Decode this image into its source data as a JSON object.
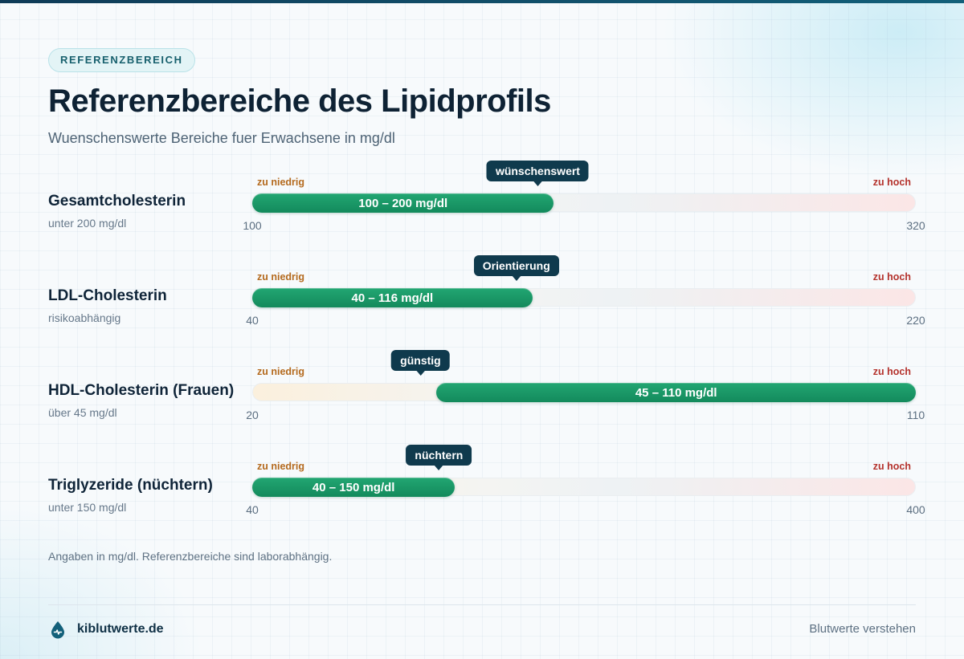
{
  "badge": "REFERENZBEREICH",
  "title": "Referenzbereiche des Lipidprofils",
  "subtitle": "Wuenschenswerte Bereiche fuer Erwachsene in mg/dl",
  "chart_data": {
    "type": "bar",
    "orientation": "horizontal-range",
    "low_label": "zu niedrig",
    "high_label": "zu hoch",
    "rows": [
      {
        "name": "Gesamtcholesterin",
        "note": "unter 200 mg/dl",
        "tag": "wünschenswert",
        "range_label": "100 – 200 mg/dl",
        "low": 100,
        "high": 200,
        "axis_min": 100,
        "axis_max": 320,
        "tag_value": 200
      },
      {
        "name": "LDL-Cholesterin",
        "note": "risikoabhängig",
        "tag": "Orientierung",
        "range_label": "40 – 116 mg/dl",
        "low": 40,
        "high": 116,
        "axis_min": 40,
        "axis_max": 220,
        "tag_value": 116
      },
      {
        "name": "HDL-Cholesterin (Frauen)",
        "note": "über 45 mg/dl",
        "tag": "günstig",
        "range_label": "45 – 110 mg/dl",
        "low": 45,
        "high": 110,
        "axis_min": 20,
        "axis_max": 110,
        "tag_value": 45
      },
      {
        "name": "Triglyzeride (nüchtern)",
        "note": "unter 150 mg/dl",
        "tag": "nüchtern",
        "range_label": "40 – 150 mg/dl",
        "low": 40,
        "high": 150,
        "axis_min": 40,
        "axis_max": 400,
        "tag_value": 150
      }
    ]
  },
  "footnote": "Angaben in mg/dl. Referenzbereiche sind laborabhängig.",
  "footer": {
    "brand": "kiblutwerte.de",
    "tagline": "Blutwerte verstehen"
  },
  "colors": {
    "accent": "#138a5c",
    "tooltip": "#0f3a4d",
    "low_text": "#b46a1e",
    "high_text": "#b4322c"
  }
}
